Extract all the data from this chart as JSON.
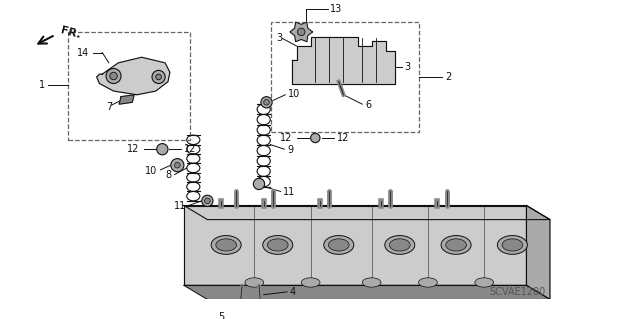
{
  "bg_color": "#ffffff",
  "fig_width": 6.4,
  "fig_height": 3.19,
  "dpi": 100,
  "title_code": "SCVAE1200",
  "fr_label": "FR.",
  "line_color": "#111111",
  "label_fontsize": 7,
  "code_fontsize": 7,
  "gray_fill": "#cccccc",
  "dark_gray": "#888888",
  "mid_gray": "#aaaaaa",
  "light_gray": "#dddddd"
}
